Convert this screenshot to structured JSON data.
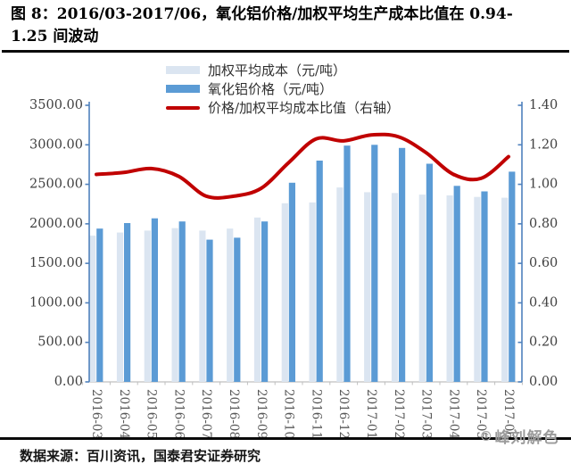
{
  "title": {
    "line1": "图 8：2016/03-2017/06，氧化铝价格/加权平均生产成本比值在 0.94-",
    "line2": "1.25 间波动"
  },
  "source_note": "数据来源：百川资讯，国泰君安证券研究",
  "watermark": "峰刘解色",
  "colors": {
    "cost_bar": "#dbe5f1",
    "price_bar": "#5b9bd5",
    "ratio_line": "#c00000",
    "value_axis": "#4f81bd",
    "category_axis": "#bfbfbf",
    "tick_text": "#404040",
    "category_text": "#595959",
    "rule": "#0a0a0a"
  },
  "chart_data": {
    "type": "bar",
    "subtype": "grouped bars + smooth line on secondary axis",
    "categories": [
      "2016-03",
      "2016-04",
      "2016-05",
      "2016-06",
      "2016-07",
      "2016-08",
      "2016-09",
      "2016-10",
      "2016-11",
      "2016-12",
      "2017-01",
      "2017-02",
      "2017-03",
      "2017-04",
      "2017-05",
      "2017-06"
    ],
    "series": [
      {
        "name": "加权平均成本（元/吨）",
        "type": "bar",
        "axis": "left",
        "color": "#dbe5f1",
        "values": [
          1850,
          1890,
          1915,
          1945,
          1915,
          1940,
          2080,
          2260,
          2270,
          2460,
          2400,
          2390,
          2370,
          2360,
          2340,
          2330
        ]
      },
      {
        "name": "氧化铝价格（元/吨）",
        "type": "bar",
        "axis": "left",
        "color": "#5b9bd5",
        "values": [
          1940,
          2010,
          2070,
          2030,
          1800,
          1825,
          2030,
          2520,
          2800,
          2990,
          3000,
          2960,
          2760,
          2480,
          2410,
          2660
        ]
      },
      {
        "name": "价格/加权平均成本比值（右轴）",
        "type": "line",
        "axis": "right",
        "color": "#c00000",
        "values": [
          1.05,
          1.06,
          1.08,
          1.04,
          0.94,
          0.94,
          0.98,
          1.11,
          1.23,
          1.22,
          1.25,
          1.24,
          1.16,
          1.05,
          1.03,
          1.14
        ]
      }
    ],
    "left_axis": {
      "min": 0,
      "max": 3500,
      "step": 500,
      "tick_labels": [
        "3500.00",
        "3000.00",
        "2500.00",
        "2000.00",
        "1500.00",
        "1000.00",
        "500.00",
        "0.00"
      ]
    },
    "right_axis": {
      "min": 0,
      "max": 1.4,
      "step": 0.2,
      "tick_labels": [
        "1.40",
        "1.20",
        "1.00",
        "0.80",
        "0.60",
        "0.40",
        "0.20",
        "0.00"
      ]
    },
    "grid": false,
    "legend_position": "top-center"
  }
}
